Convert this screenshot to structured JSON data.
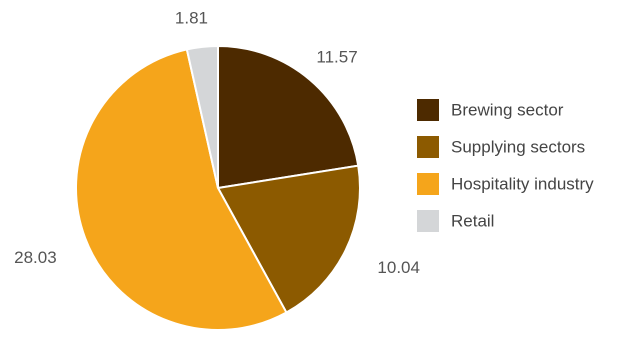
{
  "chart_data": {
    "type": "pie",
    "title": "",
    "start_angle_deg": 0,
    "direction": "clockwise",
    "slices": [
      {
        "label": "Brewing sector",
        "value": 11.57,
        "display": "11.57",
        "color": "#4d2a00"
      },
      {
        "label": "Supplying sectors",
        "value": 10.04,
        "display": "10.04",
        "color": "#8c5a00"
      },
      {
        "label": "Hospitality industry",
        "value": 28.03,
        "display": "28.03",
        "color": "#f5a51b"
      },
      {
        "label": "Retail",
        "value": 1.81,
        "display": "1.81",
        "color": "#d4d6d8"
      }
    ],
    "legend": {
      "position": "right",
      "entries": [
        "Brewing sector",
        "Supplying sectors",
        "Hospitality industry",
        "Retail"
      ]
    },
    "value_label_color": "#555555",
    "legend_text_color": "#444444",
    "slice_border_color": "#ffffff"
  }
}
